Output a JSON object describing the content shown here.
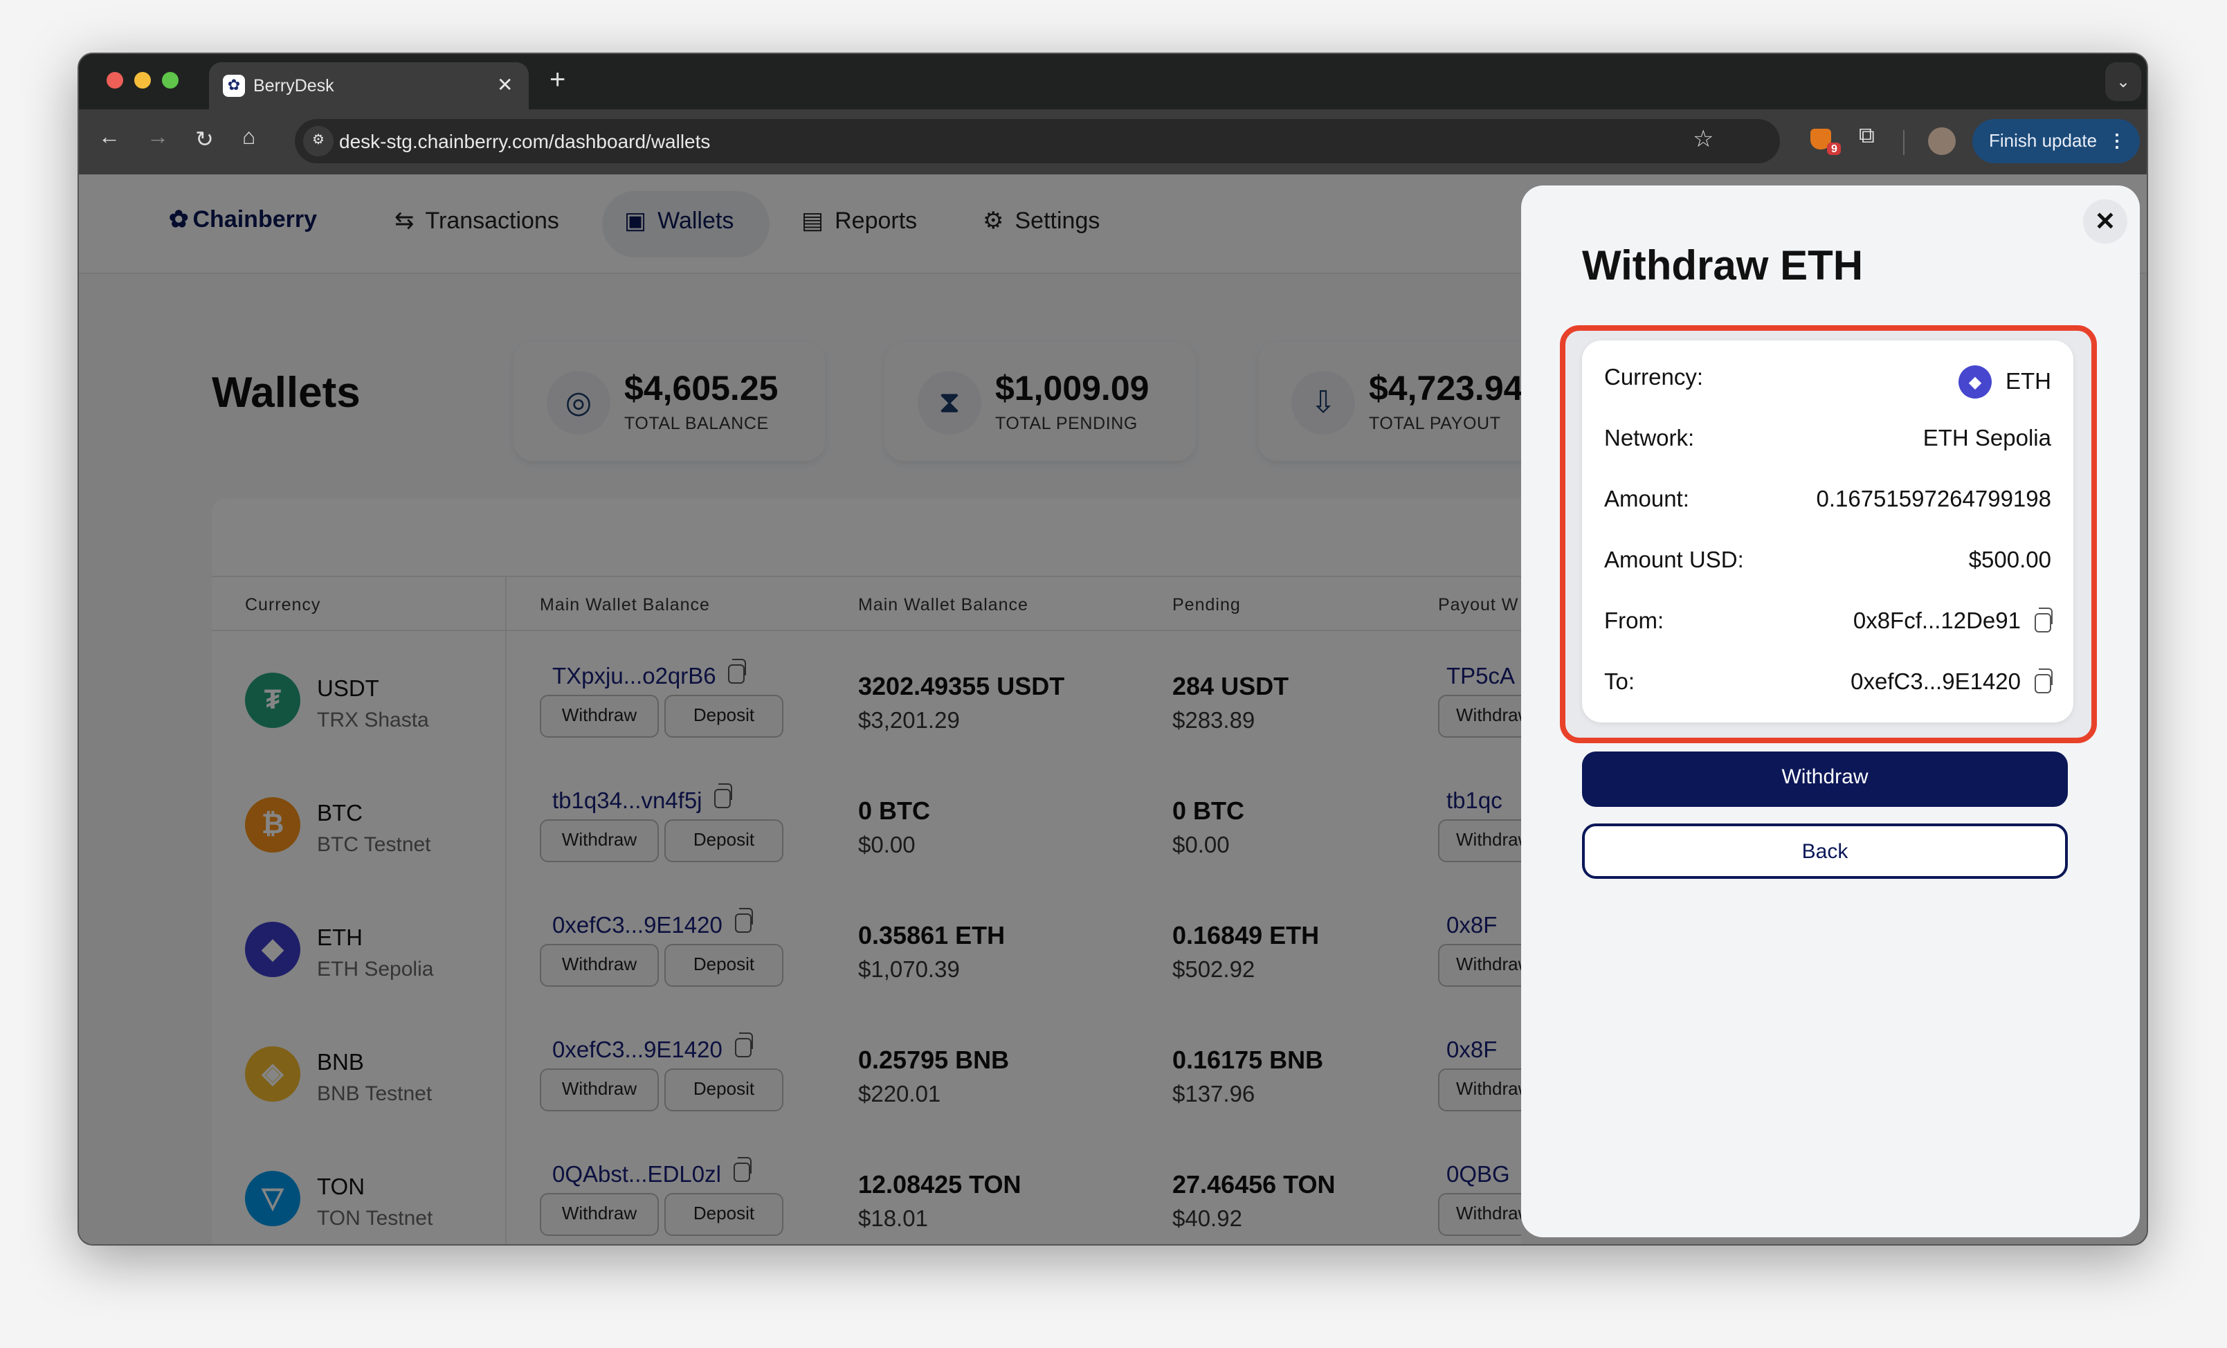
{
  "browser": {
    "tab_title": "BerryDesk",
    "url": "desk-stg.chainberry.com/dashboard/wallets",
    "extension_badge": "9",
    "finish_update": "Finish update"
  },
  "nav": {
    "logo": "Chainberry",
    "items": [
      {
        "label": "Transactions",
        "icon": "arrows-swap-icon"
      },
      {
        "label": "Wallets",
        "icon": "wallet-icon",
        "active": true
      },
      {
        "label": "Reports",
        "icon": "report-icon"
      },
      {
        "label": "Settings",
        "icon": "gear-icon"
      }
    ]
  },
  "page": {
    "title": "Wallets"
  },
  "stats": [
    {
      "value": "$4,605.25",
      "label": "TOTAL BALANCE",
      "icon": "target-icon"
    },
    {
      "value": "$1,009.09",
      "label": "TOTAL PENDING",
      "icon": "hourglass-icon"
    },
    {
      "value": "$4,723.94",
      "label": "TOTAL PAYOUT",
      "icon": "payout-wallet-icon"
    }
  ],
  "table": {
    "headers": [
      "Currency",
      "Main Wallet Balance",
      "Main Wallet Balance",
      "Pending",
      "Payout W"
    ],
    "withdraw_label": "Withdraw",
    "deposit_label": "Deposit",
    "rows": [
      {
        "symbol": "USDT",
        "network": "TRX Shasta",
        "address": "TXpxju...o2qrB6",
        "balance": "3202.49355 USDT",
        "balance_usd": "$3,201.29",
        "pending": "284 USDT",
        "pending_usd": "$283.89",
        "payout_address": "TP5cA",
        "color": "#26a17b",
        "glyph": "₮"
      },
      {
        "symbol": "BTC",
        "network": "BTC Testnet",
        "address": "tb1q34...vn4f5j",
        "balance": "0 BTC",
        "balance_usd": "$0.00",
        "pending": "0 BTC",
        "pending_usd": "$0.00",
        "payout_address": "tb1qc",
        "color": "#f7931a",
        "glyph": "₿"
      },
      {
        "symbol": "ETH",
        "network": "ETH Sepolia",
        "address": "0xefC3...9E1420",
        "balance": "0.35861 ETH",
        "balance_usd": "$1,070.39",
        "pending": "0.16849 ETH",
        "pending_usd": "$502.92",
        "payout_address": "0x8F",
        "color": "#3d3dc9",
        "glyph": "◆"
      },
      {
        "symbol": "BNB",
        "network": "BNB Testnet",
        "address": "0xefC3...9E1420",
        "balance": "0.25795 BNB",
        "balance_usd": "$220.01",
        "pending": "0.16175 BNB",
        "pending_usd": "$137.96",
        "payout_address": "0x8F",
        "color": "#f3ba2f",
        "glyph": "◈"
      },
      {
        "symbol": "TON",
        "network": "TON Testnet",
        "address": "0QAbst...EDL0zl",
        "balance": "12.08425 TON",
        "balance_usd": "$18.01",
        "pending": "27.46456 TON",
        "pending_usd": "$40.92",
        "payout_address": "0QBG",
        "color": "#0098ea",
        "glyph": "▽"
      }
    ]
  },
  "modal": {
    "title": "Withdraw ETH",
    "highlight_color": "#e8412a",
    "details": [
      {
        "label": "Currency:",
        "value": "ETH",
        "icon": "eth-icon"
      },
      {
        "label": "Network:",
        "value": "ETH Sepolia"
      },
      {
        "label": "Amount:",
        "value": "0.16751597264799198"
      },
      {
        "label": "Amount USD:",
        "value": "$500.00"
      },
      {
        "label": "From:",
        "value": "0x8Fcf...12De91",
        "copy": true
      },
      {
        "label": "To:",
        "value": "0xefC3...9E1420",
        "copy": true
      }
    ],
    "withdraw_label": "Withdraw",
    "back_label": "Back",
    "accent": "#0b1757"
  }
}
